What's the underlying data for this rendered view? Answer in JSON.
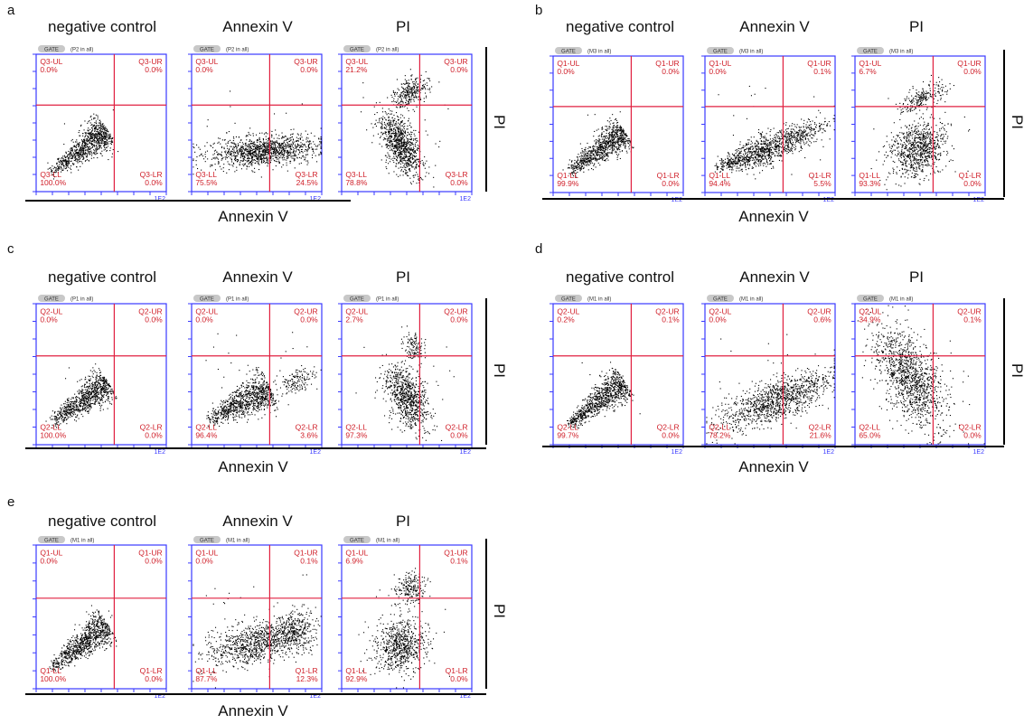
{
  "figure": {
    "column_titles": [
      "negative control",
      "Annexin V",
      "PI"
    ],
    "x_axis_label": "Annexin V",
    "y_axis_label": "PI",
    "tick_label_top": "1E2"
  },
  "colors": {
    "axis_frame": "#3a3aff",
    "quadrant_lines": "#e02040",
    "quadrant_text": "#d0202a",
    "events": "#000000",
    "gate_badge": "#c8c8c8"
  },
  "chart_data": [
    {
      "panel": "a",
      "type": "scatter",
      "x_scale": "log",
      "y_scale": "log",
      "plots": [
        {
          "condition": "negative control",
          "gate_tag": "(P2 in all)",
          "quadrant_labels": [
            "Q3-UL",
            "Q3-UR",
            "Q3-LL",
            "Q3-LR"
          ],
          "percentages": {
            "UL": "0.0%",
            "UR": "0.0%",
            "LL": "100.0%",
            "LR": "0.0%"
          }
        },
        {
          "condition": "Annexin V",
          "gate_tag": "(P2 in all)",
          "quadrant_labels": [
            "Q3-UL",
            "Q3-UR",
            "Q3-LL",
            "Q3-LR"
          ],
          "percentages": {
            "UL": "0.0%",
            "UR": "0.0%",
            "LL": "75.5%",
            "LR": "24.5%"
          }
        },
        {
          "condition": "PI",
          "gate_tag": "(P2 in all)",
          "quadrant_labels": [
            "Q3-UL",
            "Q3-UR",
            "Q3-LL",
            "Q3-LR"
          ],
          "percentages": {
            "UL": "21.2%",
            "UR": "0.0%",
            "LL": "78.8%",
            "LR": "0.0%"
          }
        }
      ]
    },
    {
      "panel": "b",
      "type": "scatter",
      "x_scale": "log",
      "y_scale": "log",
      "plots": [
        {
          "condition": "negative control",
          "gate_tag": "(M3 in all)",
          "quadrant_labels": [
            "Q1-UL",
            "Q1-UR",
            "Q1-LL",
            "Q1-LR"
          ],
          "percentages": {
            "UL": "0.0%",
            "UR": "0.0%",
            "LL": "99.9%",
            "LR": "0.0%"
          }
        },
        {
          "condition": "Annexin V",
          "gate_tag": "(M3 in all)",
          "quadrant_labels": [
            "Q1-UL",
            "Q1-UR",
            "Q1-LL",
            "Q1-LR"
          ],
          "percentages": {
            "UL": "0.0%",
            "UR": "0.1%",
            "LL": "94.4%",
            "LR": "5.5%"
          }
        },
        {
          "condition": "PI",
          "gate_tag": "(M3 in all)",
          "quadrant_labels": [
            "Q1-UL",
            "Q1-UR",
            "Q1-LL",
            "Q1-LR"
          ],
          "percentages": {
            "UL": "6.7%",
            "UR": "0.0%",
            "LL": "93.3%",
            "LR": "0.0%"
          }
        }
      ]
    },
    {
      "panel": "c",
      "type": "scatter",
      "x_scale": "log",
      "y_scale": "log",
      "plots": [
        {
          "condition": "negative control",
          "gate_tag": "(P1 in all)",
          "quadrant_labels": [
            "Q2-UL",
            "Q2-UR",
            "Q2-LL",
            "Q2-LR"
          ],
          "percentages": {
            "UL": "0.0%",
            "UR": "0.0%",
            "LL": "100.0%",
            "LR": "0.0%"
          }
        },
        {
          "condition": "Annexin V",
          "gate_tag": "(P1 in all)",
          "quadrant_labels": [
            "Q2-UL",
            "Q2-UR",
            "Q2-LL",
            "Q2-LR"
          ],
          "percentages": {
            "UL": "0.0%",
            "UR": "0.0%",
            "LL": "96.4%",
            "LR": "3.6%"
          }
        },
        {
          "condition": "PI",
          "gate_tag": "(P1 in all)",
          "quadrant_labels": [
            "Q2-UL",
            "Q2-UR",
            "Q2-LL",
            "Q2-LR"
          ],
          "percentages": {
            "UL": "2.7%",
            "UR": "0.0%",
            "LL": "97.3%",
            "LR": "0.0%"
          }
        }
      ]
    },
    {
      "panel": "d",
      "type": "scatter",
      "x_scale": "log",
      "y_scale": "log",
      "plots": [
        {
          "condition": "negative control",
          "gate_tag": "(M1 in all)",
          "quadrant_labels": [
            "Q2-UL",
            "Q2-UR",
            "Q2-LL",
            "Q2-LR"
          ],
          "percentages": {
            "UL": "0.2%",
            "UR": "0.1%",
            "LL": "99.7%",
            "LR": "0.0%"
          }
        },
        {
          "condition": "Annexin V",
          "gate_tag": "(M1 in all)",
          "quadrant_labels": [
            "Q2-UL",
            "Q2-UR",
            "Q2-LL",
            "Q2-LR"
          ],
          "percentages": {
            "UL": "0.0%",
            "UR": "0.6%",
            "LL": "78.2%",
            "LR": "21.6%"
          }
        },
        {
          "condition": "PI",
          "gate_tag": "(M1 in all)",
          "quadrant_labels": [
            "Q2-UL",
            "Q2-UR",
            "Q2-LL",
            "Q2-LR"
          ],
          "percentages": {
            "UL": "34.9%",
            "UR": "0.1%",
            "LL": "65.0%",
            "LR": "0.0%"
          }
        }
      ]
    },
    {
      "panel": "e",
      "type": "scatter",
      "x_scale": "log",
      "y_scale": "log",
      "plots": [
        {
          "condition": "negative control",
          "gate_tag": "(M1 in all)",
          "quadrant_labels": [
            "Q1-UL",
            "Q1-UR",
            "Q1-LL",
            "Q1-LR"
          ],
          "percentages": {
            "UL": "0.0%",
            "UR": "0.0%",
            "LL": "100.0%",
            "LR": "0.0%"
          }
        },
        {
          "condition": "Annexin V",
          "gate_tag": "(M1 in all)",
          "quadrant_labels": [
            "Q1-UL",
            "Q1-UR",
            "Q1-LL",
            "Q1-LR"
          ],
          "percentages": {
            "UL": "0.0%",
            "UR": "0.1%",
            "LL": "87.7%",
            "LR": "12.3%"
          }
        },
        {
          "condition": "PI",
          "gate_tag": "(M1 in all)",
          "quadrant_labels": [
            "Q1-UL",
            "Q1-UR",
            "Q1-LL",
            "Q1-LR"
          ],
          "percentages": {
            "UL": "6.9%",
            "UR": "0.1%",
            "LL": "92.9%",
            "LR": "0.0%"
          }
        }
      ]
    }
  ]
}
